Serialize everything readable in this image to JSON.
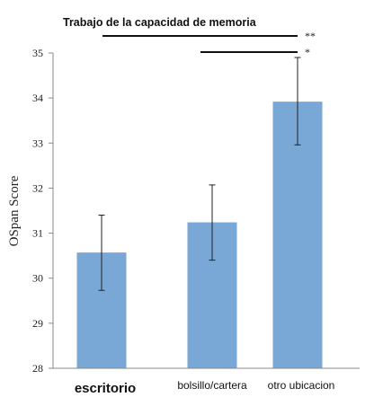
{
  "chart_data": {
    "type": "bar",
    "title": "Trabajo de la capacidad de memoria",
    "ylabel": "OSpan Score",
    "xlabel": "",
    "ylim": [
      28,
      35
    ],
    "yticks": [
      "28",
      "29",
      "30",
      "31",
      "32",
      "33",
      "34",
      "35"
    ],
    "categories": [
      "escritorio",
      "bolsillo/cartera",
      "otro ubicacion"
    ],
    "values": [
      30.57,
      31.24,
      33.92
    ],
    "error_low": [
      29.73,
      30.4,
      32.96
    ],
    "error_high": [
      31.4,
      32.07,
      34.9
    ],
    "bar_color": "#79a7d6",
    "significance": [
      {
        "label": "**",
        "from": 0,
        "to": 2
      },
      {
        "label": "*",
        "from": 1,
        "to": 2
      }
    ]
  }
}
